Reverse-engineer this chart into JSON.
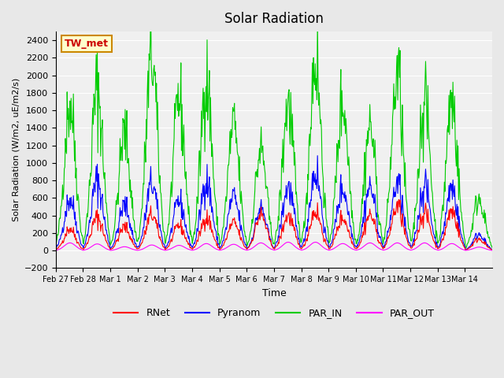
{
  "title": "Solar Radiation",
  "ylabel": "Solar Radiation (W/m2, uE/m2/s)",
  "xlabel": "Time",
  "ylim": [
    -200,
    2500
  ],
  "yticks": [
    -200,
    0,
    200,
    400,
    600,
    800,
    1000,
    1200,
    1400,
    1600,
    1800,
    2000,
    2200,
    2400
  ],
  "background_color": "#e8e8e8",
  "plot_bg_color": "#f0f0f0",
  "station_label": "TW_met",
  "legend_entries": [
    "RNet",
    "Pyranom",
    "PAR_IN",
    "PAR_OUT"
  ],
  "line_colors": {
    "RNet": "#ff0000",
    "Pyranom": "#0000ff",
    "PAR_IN": "#00cc00",
    "PAR_OUT": "#ff00ff"
  },
  "x_tick_labels": [
    "Feb 27",
    "Feb 28",
    "Mar 1",
    "Mar 2",
    "Mar 3",
    "Mar 4",
    "Mar 5",
    "Mar 6",
    "Mar 7",
    "Mar 8",
    "Mar 9",
    "Mar 10",
    "Mar 11",
    "Mar 12",
    "Mar 13",
    "Mar 14"
  ],
  "n_days": 16,
  "pts_per_day": 48,
  "par_in_peaks": [
    1680,
    1850,
    1340,
    2200,
    1740,
    1950,
    1420,
    1150,
    1680,
    2170,
    1700,
    1420,
    2000,
    1720,
    1720,
    600
  ],
  "pyranom_peaks": [
    620,
    840,
    540,
    800,
    600,
    840,
    640,
    500,
    760,
    940,
    750,
    760,
    800,
    780,
    760,
    200
  ],
  "rnet_peaks": [
    280,
    420,
    300,
    450,
    320,
    420,
    350,
    450,
    440,
    500,
    420,
    450,
    560,
    480,
    500,
    150
  ],
  "par_out_peaks": [
    110,
    95,
    55,
    80,
    75,
    100,
    90,
    110,
    120,
    120,
    100,
    110,
    110,
    110,
    100,
    50
  ]
}
